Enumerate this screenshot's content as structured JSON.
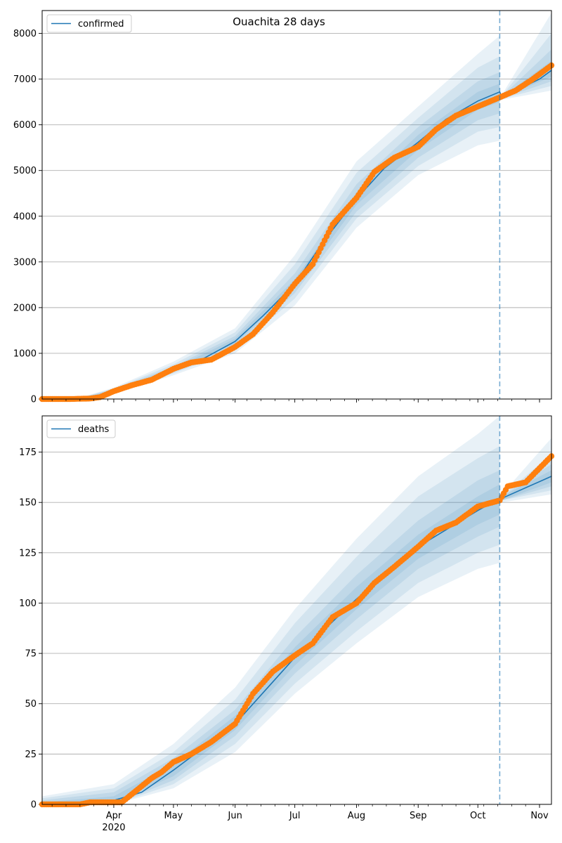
{
  "chart_data": [
    {
      "type": "line",
      "title": "Ouachita 28 days",
      "series_name": "confirmed",
      "x_start": "2020-02-25",
      "x_end": "2020-11-07",
      "forecast_date": "2020-10-12",
      "ylim": [
        0,
        8500
      ],
      "yticks": [
        0,
        1000,
        2000,
        3000,
        4000,
        5000,
        6000,
        7000,
        8000
      ],
      "grid": "horizontal",
      "legend_placement": "top-left",
      "median": [
        [
          "2020-02-25",
          0
        ],
        [
          "2020-03-15",
          5
        ],
        [
          "2020-03-22",
          30
        ],
        [
          "2020-04-01",
          180
        ],
        [
          "2020-04-15",
          380
        ],
        [
          "2020-05-01",
          640
        ],
        [
          "2020-05-15",
          860
        ],
        [
          "2020-06-01",
          1260
        ],
        [
          "2020-06-15",
          1820
        ],
        [
          "2020-07-01",
          2520
        ],
        [
          "2020-07-15",
          3420
        ],
        [
          "2020-08-01",
          4380
        ],
        [
          "2020-08-15",
          5050
        ],
        [
          "2020-09-01",
          5620
        ],
        [
          "2020-09-15",
          6120
        ],
        [
          "2020-10-01",
          6520
        ],
        [
          "2020-10-12",
          6720
        ],
        [
          "2020-10-13",
          6600
        ],
        [
          "2020-10-20",
          6750
        ],
        [
          "2020-11-01",
          7000
        ],
        [
          "2020-11-07",
          7190
        ]
      ],
      "bands": [
        [
          [
            "2020-02-25",
            0,
            20
          ],
          [
            "2020-03-15",
            0,
            30
          ],
          [
            "2020-04-01",
            120,
            250
          ],
          [
            "2020-05-01",
            520,
            820
          ],
          [
            "2020-06-01",
            1000,
            1550
          ],
          [
            "2020-07-01",
            2050,
            3150
          ],
          [
            "2020-08-01",
            3750,
            5200
          ],
          [
            "2020-09-01",
            4900,
            6400
          ],
          [
            "2020-10-01",
            5550,
            7550
          ],
          [
            "2020-10-12",
            5650,
            7950
          ],
          [
            "2020-10-13",
            6550,
            6650
          ],
          [
            "2020-11-07",
            6750,
            8450
          ]
        ],
        [
          [
            "2020-02-25",
            0,
            15
          ],
          [
            "2020-03-15",
            0,
            25
          ],
          [
            "2020-04-01",
            140,
            230
          ],
          [
            "2020-05-01",
            560,
            760
          ],
          [
            "2020-06-01",
            1080,
            1460
          ],
          [
            "2020-07-01",
            2200,
            2950
          ],
          [
            "2020-08-01",
            3950,
            4950
          ],
          [
            "2020-09-01",
            5100,
            6150
          ],
          [
            "2020-10-01",
            5850,
            7250
          ],
          [
            "2020-10-12",
            5950,
            7500
          ],
          [
            "2020-10-13",
            6570,
            6630
          ],
          [
            "2020-11-07",
            6850,
            8000
          ]
        ],
        [
          [
            "2020-02-25",
            0,
            10
          ],
          [
            "2020-03-15",
            0,
            20
          ],
          [
            "2020-04-01",
            150,
            210
          ],
          [
            "2020-05-01",
            590,
            710
          ],
          [
            "2020-06-01",
            1150,
            1380
          ],
          [
            "2020-07-01",
            2320,
            2750
          ],
          [
            "2020-08-01",
            4100,
            4700
          ],
          [
            "2020-09-01",
            5280,
            5950
          ],
          [
            "2020-10-01",
            6100,
            6950
          ],
          [
            "2020-10-12",
            6250,
            7150
          ],
          [
            "2020-10-13",
            6580,
            6620
          ],
          [
            "2020-11-07",
            6950,
            7650
          ]
        ],
        [
          [
            "2020-02-25",
            0,
            5
          ],
          [
            "2020-03-15",
            0,
            12
          ],
          [
            "2020-04-01",
            165,
            200
          ],
          [
            "2020-05-01",
            615,
            670
          ],
          [
            "2020-06-01",
            1210,
            1320
          ],
          [
            "2020-07-01",
            2420,
            2620
          ],
          [
            "2020-08-01",
            4250,
            4520
          ],
          [
            "2020-09-01",
            5450,
            5780
          ],
          [
            "2020-10-01",
            6330,
            6720
          ],
          [
            "2020-10-12",
            6500,
            6900
          ],
          [
            "2020-10-13",
            6590,
            6610
          ],
          [
            "2020-11-07",
            7050,
            7400
          ]
        ]
      ],
      "observed": [
        [
          "2020-02-25",
          0
        ],
        [
          "2020-03-10",
          0
        ],
        [
          "2020-03-20",
          10
        ],
        [
          "2020-03-25",
          40
        ],
        [
          "2020-04-01",
          170
        ],
        [
          "2020-04-10",
          300
        ],
        [
          "2020-04-20",
          420
        ],
        [
          "2020-05-01",
          660
        ],
        [
          "2020-05-10",
          800
        ],
        [
          "2020-05-20",
          860
        ],
        [
          "2020-06-01",
          1140
        ],
        [
          "2020-06-10",
          1420
        ],
        [
          "2020-06-20",
          1900
        ],
        [
          "2020-07-01",
          2520
        ],
        [
          "2020-07-10",
          2950
        ],
        [
          "2020-07-20",
          3820
        ],
        [
          "2020-08-01",
          4400
        ],
        [
          "2020-08-10",
          4970
        ],
        [
          "2020-08-20",
          5280
        ],
        [
          "2020-09-01",
          5520
        ],
        [
          "2020-09-10",
          5900
        ],
        [
          "2020-09-20",
          6200
        ],
        [
          "2020-10-01",
          6400
        ],
        [
          "2020-10-12",
          6600
        ],
        [
          "2020-10-20",
          6750
        ],
        [
          "2020-10-28",
          6980
        ],
        [
          "2020-11-07",
          7300
        ]
      ]
    },
    {
      "type": "line",
      "series_name": "deaths",
      "x_start": "2020-02-25",
      "x_end": "2020-11-07",
      "forecast_date": "2020-10-12",
      "ylim": [
        0,
        193
      ],
      "yticks": [
        0,
        25,
        50,
        75,
        100,
        125,
        150,
        175
      ],
      "grid": "horizontal",
      "legend_placement": "top-left",
      "x_tick_labels": [
        {
          "date": "2020-04-01",
          "label": "Apr",
          "year": "2020"
        },
        {
          "date": "2020-05-01",
          "label": "May"
        },
        {
          "date": "2020-06-01",
          "label": "Jun"
        },
        {
          "date": "2020-07-01",
          "label": "Jul"
        },
        {
          "date": "2020-08-01",
          "label": "Aug"
        },
        {
          "date": "2020-09-01",
          "label": "Sep"
        },
        {
          "date": "2020-10-01",
          "label": "Oct"
        },
        {
          "date": "2020-11-01",
          "label": "Nov"
        }
      ],
      "median": [
        [
          "2020-02-25",
          0
        ],
        [
          "2020-03-20",
          1
        ],
        [
          "2020-04-01",
          2
        ],
        [
          "2020-04-15",
          6
        ],
        [
          "2020-05-01",
          17
        ],
        [
          "2020-06-01",
          40
        ],
        [
          "2020-07-01",
          73
        ],
        [
          "2020-08-01",
          102
        ],
        [
          "2020-09-01",
          128
        ],
        [
          "2020-10-01",
          146
        ],
        [
          "2020-10-12",
          152
        ],
        [
          "2020-10-13",
          152
        ],
        [
          "2020-11-07",
          163
        ]
      ],
      "bands": [
        [
          [
            "2020-02-25",
            0,
            4
          ],
          [
            "2020-04-01",
            0,
            10
          ],
          [
            "2020-05-01",
            8,
            30
          ],
          [
            "2020-06-01",
            26,
            58
          ],
          [
            "2020-07-01",
            55,
            97
          ],
          [
            "2020-08-01",
            80,
            132
          ],
          [
            "2020-09-01",
            103,
            163
          ],
          [
            "2020-10-01",
            117,
            184
          ],
          [
            "2020-10-12",
            120,
            193
          ],
          [
            "2020-10-13",
            150,
            154
          ],
          [
            "2020-11-07",
            154,
            182
          ]
        ],
        [
          [
            "2020-02-25",
            0,
            3
          ],
          [
            "2020-04-01",
            0,
            8
          ],
          [
            "2020-05-01",
            10,
            26
          ],
          [
            "2020-06-01",
            30,
            52
          ],
          [
            "2020-07-01",
            60,
            90
          ],
          [
            "2020-08-01",
            86,
            123
          ],
          [
            "2020-09-01",
            110,
            153
          ],
          [
            "2020-10-01",
            125,
            172
          ],
          [
            "2020-10-12",
            129,
            178
          ],
          [
            "2020-10-13",
            151,
            153
          ],
          [
            "2020-11-07",
            156,
            174
          ]
        ],
        [
          [
            "2020-02-25",
            0,
            2
          ],
          [
            "2020-04-01",
            0,
            6
          ],
          [
            "2020-05-01",
            12,
            23
          ],
          [
            "2020-06-01",
            34,
            47
          ],
          [
            "2020-07-01",
            65,
            83
          ],
          [
            "2020-08-01",
            92,
            114
          ],
          [
            "2020-09-01",
            117,
            141
          ],
          [
            "2020-10-01",
            133,
            161
          ],
          [
            "2020-10-12",
            138,
            166
          ],
          [
            "2020-10-13",
            151,
            153
          ],
          [
            "2020-11-07",
            158,
            169
          ]
        ],
        [
          [
            "2020-02-25",
            0,
            1
          ],
          [
            "2020-04-01",
            1,
            4
          ],
          [
            "2020-05-01",
            14,
            20
          ],
          [
            "2020-06-01",
            37,
            44
          ],
          [
            "2020-07-01",
            69,
            78
          ],
          [
            "2020-08-01",
            97,
            108
          ],
          [
            "2020-09-01",
            122,
            134
          ],
          [
            "2020-10-01",
            139,
            153
          ],
          [
            "2020-10-12",
            144,
            159
          ],
          [
            "2020-10-13",
            151,
            153
          ],
          [
            "2020-11-07",
            160,
            166
          ]
        ]
      ],
      "observed": [
        [
          "2020-02-25",
          0
        ],
        [
          "2020-03-15",
          0
        ],
        [
          "2020-03-20",
          1
        ],
        [
          "2020-04-01",
          1
        ],
        [
          "2020-04-05",
          1
        ],
        [
          "2020-04-10",
          5
        ],
        [
          "2020-04-20",
          13
        ],
        [
          "2020-04-25",
          16
        ],
        [
          "2020-05-01",
          21
        ],
        [
          "2020-05-10",
          25
        ],
        [
          "2020-05-20",
          31
        ],
        [
          "2020-06-01",
          40
        ],
        [
          "2020-06-10",
          55
        ],
        [
          "2020-06-20",
          66
        ],
        [
          "2020-07-01",
          74
        ],
        [
          "2020-07-10",
          80
        ],
        [
          "2020-07-20",
          93
        ],
        [
          "2020-08-01",
          100
        ],
        [
          "2020-08-10",
          110
        ],
        [
          "2020-08-20",
          118
        ],
        [
          "2020-09-01",
          128
        ],
        [
          "2020-09-10",
          136
        ],
        [
          "2020-09-20",
          140
        ],
        [
          "2020-10-01",
          148
        ],
        [
          "2020-10-12",
          151
        ],
        [
          "2020-10-16",
          158
        ],
        [
          "2020-10-25",
          160
        ],
        [
          "2020-11-01",
          167
        ],
        [
          "2020-11-07",
          173
        ]
      ]
    }
  ],
  "colors": {
    "median": "#1f77b4",
    "observed": "#ff7f0e",
    "band": "#1f77b4",
    "grid": "#b0b0b0",
    "forecast_line": "#1f77b4"
  }
}
